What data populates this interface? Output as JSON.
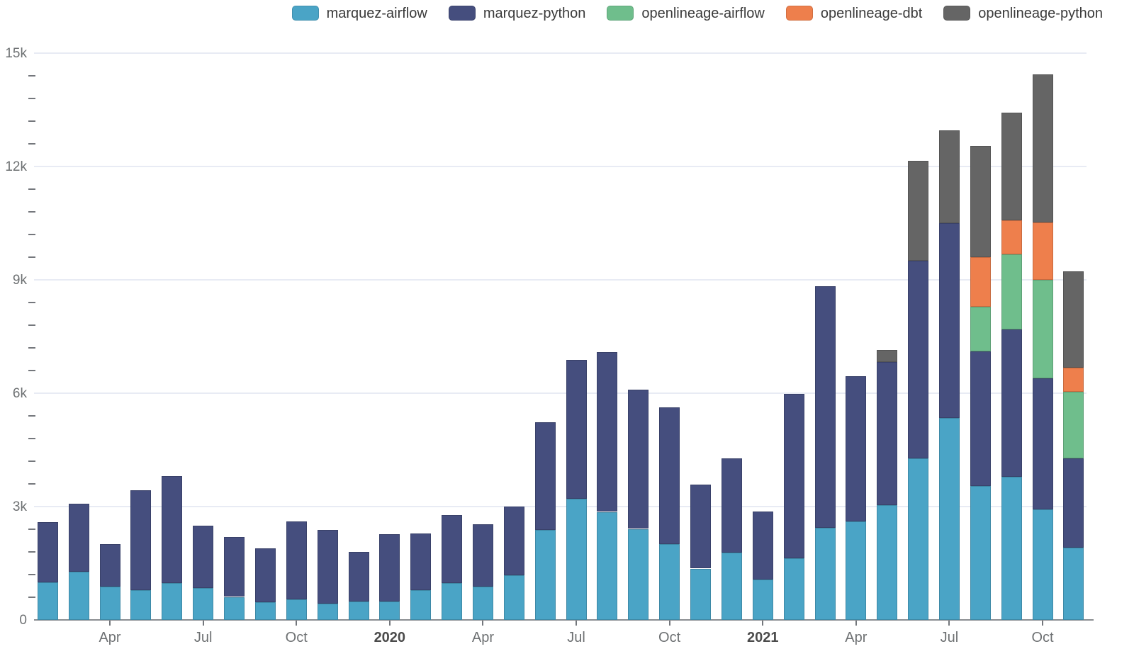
{
  "chart_data": {
    "type": "bar",
    "stacked": true,
    "title": "",
    "xlabel": "",
    "ylabel": "",
    "grid": true,
    "legend_position": "top-right",
    "ylim": [
      0,
      15000
    ],
    "y_major_ticks": [
      {
        "value": 0,
        "label": "0"
      },
      {
        "value": 3000,
        "label": "3k"
      },
      {
        "value": 6000,
        "label": "6k"
      },
      {
        "value": 9000,
        "label": "9k"
      },
      {
        "value": 12000,
        "label": "12k"
      },
      {
        "value": 15000,
        "label": "15k"
      }
    ],
    "y_minor_step": 600,
    "categories": [
      "Feb 2019",
      "Mar 2019",
      "Apr 2019",
      "May 2019",
      "Jun 2019",
      "Jul 2019",
      "Aug 2019",
      "Sep 2019",
      "Oct 2019",
      "Nov 2019",
      "Dec 2019",
      "Jan 2020",
      "Feb 2020",
      "Mar 2020",
      "Apr 2020",
      "May 2020",
      "Jun 2020",
      "Jul 2020",
      "Aug 2020",
      "Sep 2020",
      "Oct 2020",
      "Nov 2020",
      "Dec 2020",
      "Jan 2021",
      "Feb 2021",
      "Mar 2021",
      "Apr 2021",
      "May 2021",
      "Jun 2021",
      "Jul 2021",
      "Aug 2021",
      "Sep 2021",
      "Oct 2021",
      "Nov 2021"
    ],
    "x_tick_labels": [
      {
        "index": 2,
        "label": "Apr",
        "bold": false
      },
      {
        "index": 5,
        "label": "Jul",
        "bold": false
      },
      {
        "index": 8,
        "label": "Oct",
        "bold": false
      },
      {
        "index": 11,
        "label": "2020",
        "bold": true
      },
      {
        "index": 14,
        "label": "Apr",
        "bold": false
      },
      {
        "index": 17,
        "label": "Jul",
        "bold": false
      },
      {
        "index": 20,
        "label": "Oct",
        "bold": false
      },
      {
        "index": 23,
        "label": "2021",
        "bold": true
      },
      {
        "index": 26,
        "label": "Apr",
        "bold": false
      },
      {
        "index": 29,
        "label": "Jul",
        "bold": false
      },
      {
        "index": 32,
        "label": "Oct",
        "bold": false
      }
    ],
    "series": [
      {
        "name": "marquez-airflow",
        "color": "#4AA4C6",
        "values": [
          1000,
          1270,
          875,
          780,
          980,
          840,
          610,
          470,
          550,
          440,
          480,
          480,
          780,
          970,
          890,
          1190,
          2390,
          3200,
          2860,
          2410,
          2000,
          1360,
          1780,
          1070,
          1630,
          2440,
          2610,
          3030,
          4270,
          5350,
          3550,
          3780,
          2930,
          1910
        ]
      },
      {
        "name": "marquez-python",
        "color": "#454E7E",
        "values": [
          1590,
          1810,
          1125,
          2660,
          2820,
          1660,
          1580,
          1430,
          2050,
          1950,
          1330,
          1790,
          1500,
          1810,
          1640,
          1810,
          2850,
          3690,
          4230,
          3680,
          3630,
          2230,
          2490,
          1800,
          4350,
          6390,
          3850,
          3790,
          5230,
          5150,
          3550,
          3910,
          3470,
          2360
        ]
      },
      {
        "name": "openlineage-airflow",
        "color": "#6FBE8C",
        "values": [
          0,
          0,
          0,
          0,
          0,
          0,
          0,
          0,
          0,
          0,
          0,
          0,
          0,
          0,
          0,
          0,
          0,
          0,
          0,
          0,
          0,
          0,
          0,
          0,
          0,
          0,
          0,
          0,
          0,
          0,
          1180,
          1990,
          2600,
          1760
        ]
      },
      {
        "name": "openlineage-dbt",
        "color": "#EE7F4C",
        "values": [
          0,
          0,
          0,
          0,
          0,
          0,
          0,
          0,
          0,
          0,
          0,
          0,
          0,
          0,
          0,
          0,
          0,
          0,
          0,
          0,
          0,
          0,
          0,
          0,
          0,
          0,
          0,
          0,
          0,
          0,
          1320,
          890,
          1520,
          640
        ]
      },
      {
        "name": "openlineage-python",
        "color": "#656565",
        "values": [
          0,
          0,
          0,
          0,
          0,
          0,
          0,
          0,
          0,
          0,
          0,
          0,
          0,
          0,
          0,
          0,
          0,
          0,
          0,
          0,
          0,
          0,
          0,
          0,
          0,
          0,
          0,
          330,
          2650,
          2450,
          2950,
          2860,
          3910,
          2560
        ]
      }
    ]
  }
}
